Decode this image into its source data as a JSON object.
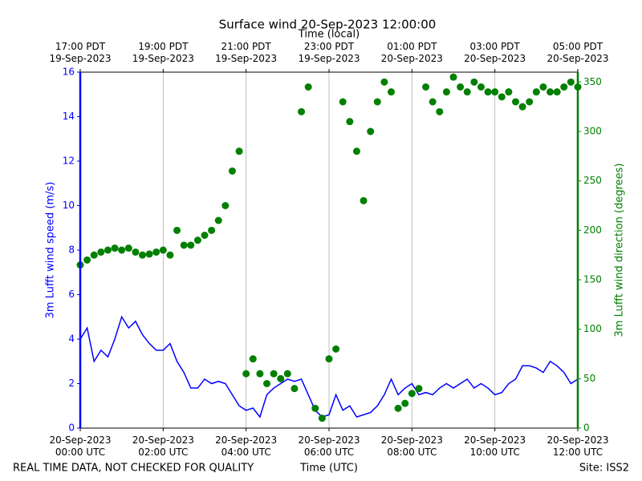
{
  "chart_data": {
    "type": "line",
    "title": "Surface wind 20-Sep-2023 12:00:00",
    "xlabel": "Time (UTC)",
    "x2label": "Time (local)",
    "ylabel": "3m Lufft wind speed (m/s)",
    "y2label": "3m Lufft wind direction (degrees)",
    "grid": "x",
    "xlim": [
      "2023-09-20 00:00",
      "2023-09-20 12:00"
    ],
    "xticks": [
      {
        "value": "2023-09-20 00:00",
        "label": "20-Sep-2023\n00:00 UTC"
      },
      {
        "value": "2023-09-20 02:00",
        "label": "20-Sep-2023\n02:00 UTC"
      },
      {
        "value": "2023-09-20 04:00",
        "label": "20-Sep-2023\n04:00 UTC"
      },
      {
        "value": "2023-09-20 06:00",
        "label": "20-Sep-2023\n06:00 UTC"
      },
      {
        "value": "2023-09-20 08:00",
        "label": "20-Sep-2023\n08:00 UTC"
      },
      {
        "value": "2023-09-20 10:00",
        "label": "20-Sep-2023\n10:00 UTC"
      },
      {
        "value": "2023-09-20 12:00",
        "label": "20-Sep-2023\n12:00 UTC"
      }
    ],
    "x2lim": [
      "2023-09-19 17:00",
      "2023-09-20 05:00"
    ],
    "x2ticks": [
      {
        "value": "2023-09-19 17:00",
        "label": "17:00 PDT\n19-Sep-2023"
      },
      {
        "value": "2023-09-19 19:00",
        "label": "19:00 PDT\n19-Sep-2023"
      },
      {
        "value": "2023-09-19 21:00",
        "label": "21:00 PDT\n19-Sep-2023"
      },
      {
        "value": "2023-09-19 23:00",
        "label": "23:00 PDT\n19-Sep-2023"
      },
      {
        "value": "2023-09-20 01:00",
        "label": "01:00 PDT\n20-Sep-2023"
      },
      {
        "value": "2023-09-20 03:00",
        "label": "03:00 PDT\n20-Sep-2023"
      },
      {
        "value": "2023-09-20 05:00",
        "label": "05:00 PDT\n20-Sep-2023"
      }
    ],
    "ylim": [
      0,
      16
    ],
    "yticks": [
      0,
      2,
      4,
      6,
      8,
      10,
      12,
      14,
      16
    ],
    "y2lim": [
      0,
      360
    ],
    "y2ticks": [
      0,
      50,
      100,
      150,
      200,
      250,
      300,
      350
    ],
    "x": [
      "2023-09-20 00:00",
      "2023-09-20 00:10",
      "2023-09-20 00:20",
      "2023-09-20 00:30",
      "2023-09-20 00:40",
      "2023-09-20 00:50",
      "2023-09-20 01:00",
      "2023-09-20 01:10",
      "2023-09-20 01:20",
      "2023-09-20 01:30",
      "2023-09-20 01:40",
      "2023-09-20 01:50",
      "2023-09-20 02:00",
      "2023-09-20 02:10",
      "2023-09-20 02:20",
      "2023-09-20 02:30",
      "2023-09-20 02:40",
      "2023-09-20 02:50",
      "2023-09-20 03:00",
      "2023-09-20 03:10",
      "2023-09-20 03:20",
      "2023-09-20 03:30",
      "2023-09-20 03:40",
      "2023-09-20 03:50",
      "2023-09-20 04:00",
      "2023-09-20 04:10",
      "2023-09-20 04:20",
      "2023-09-20 04:30",
      "2023-09-20 04:40",
      "2023-09-20 04:50",
      "2023-09-20 05:00",
      "2023-09-20 05:10",
      "2023-09-20 05:20",
      "2023-09-20 05:30",
      "2023-09-20 05:40",
      "2023-09-20 05:50",
      "2023-09-20 06:00",
      "2023-09-20 06:10",
      "2023-09-20 06:20",
      "2023-09-20 06:30",
      "2023-09-20 06:40",
      "2023-09-20 06:50",
      "2023-09-20 07:00",
      "2023-09-20 07:10",
      "2023-09-20 07:20",
      "2023-09-20 07:30",
      "2023-09-20 07:40",
      "2023-09-20 07:50",
      "2023-09-20 08:00",
      "2023-09-20 08:10",
      "2023-09-20 08:20",
      "2023-09-20 08:30",
      "2023-09-20 08:40",
      "2023-09-20 08:50",
      "2023-09-20 09:00",
      "2023-09-20 09:10",
      "2023-09-20 09:20",
      "2023-09-20 09:30",
      "2023-09-20 09:40",
      "2023-09-20 09:50",
      "2023-09-20 10:00",
      "2023-09-20 10:10",
      "2023-09-20 10:20",
      "2023-09-20 10:30",
      "2023-09-20 10:40",
      "2023-09-20 10:50",
      "2023-09-20 11:00",
      "2023-09-20 11:10",
      "2023-09-20 11:20",
      "2023-09-20 11:30",
      "2023-09-20 11:40",
      "2023-09-20 11:50",
      "2023-09-20 12:00"
    ],
    "series": [
      {
        "type": "line",
        "color": "#0000ff",
        "values": [
          4.0,
          4.5,
          3.0,
          3.5,
          3.2,
          4.0,
          5.0,
          4.5,
          4.8,
          4.2,
          3.8,
          3.5,
          3.5,
          3.8,
          3.0,
          2.5,
          1.8,
          1.8,
          2.2,
          2.0,
          2.1,
          2.0,
          1.5,
          1.0,
          0.8,
          0.9,
          0.5,
          1.5,
          1.8,
          2.0,
          2.2,
          2.1,
          2.2,
          1.5,
          0.8,
          0.5,
          0.6,
          1.5,
          0.8,
          1.0,
          0.5,
          0.6,
          0.7,
          1.0,
          1.5,
          2.2,
          1.5,
          1.8,
          2.0,
          1.5,
          1.6,
          1.5,
          1.8,
          2.0,
          1.8,
          2.0,
          2.2,
          1.8,
          2.0,
          1.8,
          1.5,
          1.6,
          2.0,
          2.2,
          2.8,
          2.8,
          2.7,
          2.5,
          3.0,
          2.8,
          2.5,
          2.0,
          2.2
        ]
      },
      {
        "type": "scatter",
        "axis": "y2",
        "color": "#008000",
        "values": [
          165,
          170,
          175,
          178,
          180,
          182,
          180,
          182,
          178,
          175,
          176,
          178,
          180,
          175,
          200,
          185,
          185,
          190,
          195,
          200,
          210,
          225,
          260,
          280,
          55,
          70,
          55,
          45,
          55,
          50,
          55,
          40,
          320,
          345,
          20,
          10,
          70,
          80,
          330,
          310,
          280,
          230,
          300,
          330,
          350,
          340,
          20,
          25,
          35,
          40,
          345,
          330,
          320,
          340,
          355,
          345,
          340,
          350,
          345,
          340,
          340,
          335,
          340,
          330,
          325,
          330,
          340,
          345,
          340,
          340,
          345,
          350,
          345
        ]
      }
    ]
  },
  "footer": {
    "left": "REAL TIME DATA, NOT CHECKED FOR QUALITY",
    "right": "Site: ISS2"
  }
}
